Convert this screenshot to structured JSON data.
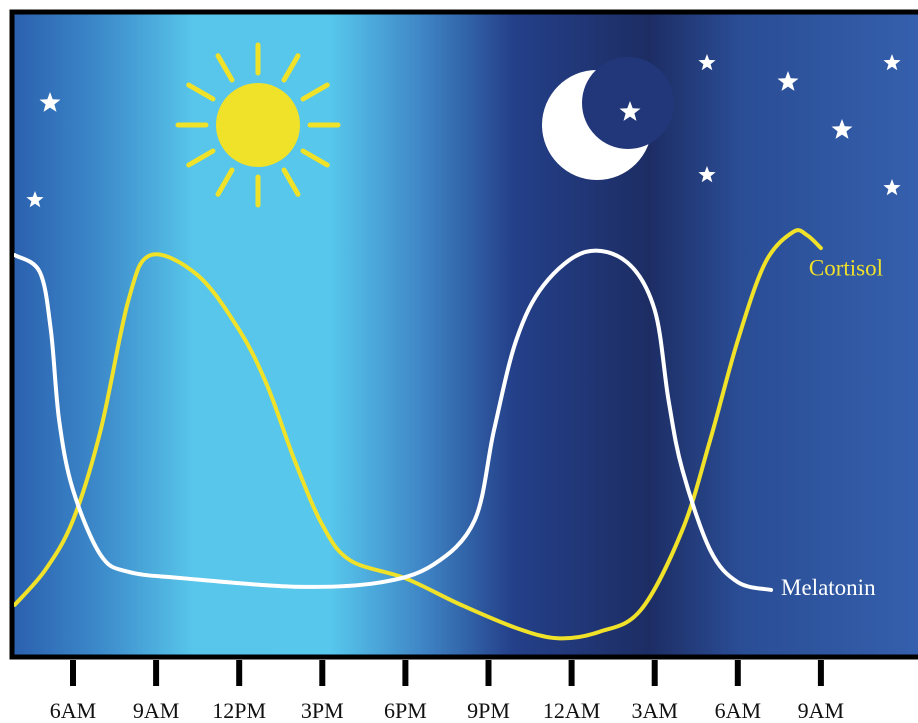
{
  "chart_data": {
    "type": "line",
    "xlim": [
      -2.2,
      30.5
    ],
    "ylim": [
      0,
      100
    ],
    "xticks": [
      {
        "value": 0,
        "label": "6AM"
      },
      {
        "value": 3,
        "label": "9AM"
      },
      {
        "value": 6,
        "label": "12PM"
      },
      {
        "value": 9,
        "label": "3PM"
      },
      {
        "value": 12,
        "label": "6PM"
      },
      {
        "value": 15,
        "label": "9PM"
      },
      {
        "value": 18,
        "label": "12AM"
      },
      {
        "value": 21,
        "label": "3AM"
      },
      {
        "value": 24,
        "label": "6AM"
      },
      {
        "value": 27,
        "label": "9AM"
      }
    ],
    "series": [
      {
        "name": "Cortisol",
        "color": "#f0e129",
        "x": [
          -2.1,
          -1,
          0,
          1,
          2,
          2.8,
          4.5,
          6,
          7,
          8,
          9,
          10,
          12,
          14,
          16,
          17.5,
          19,
          20.5,
          22,
          23,
          24,
          25,
          26,
          26.5,
          27
        ],
        "values": [
          8.1,
          13.5,
          21.2,
          35.2,
          55.3,
          62.3,
          59.2,
          50.7,
          42.2,
          30.5,
          20.5,
          15,
          12.2,
          8.1,
          4.5,
          2.9,
          3.9,
          7.3,
          19.7,
          33.6,
          49.1,
          61.2,
          65.9,
          65.4,
          63.4
        ]
      },
      {
        "name": "Melatonin",
        "color": "#ffffff",
        "x": [
          -2.1,
          -1.2,
          -0.8,
          -0.5,
          0,
          1,
          2,
          4,
          8,
          11,
          13,
          14.5,
          15.2,
          16,
          17,
          18.5,
          20,
          21,
          21.5,
          22,
          23,
          24,
          25.2
        ],
        "values": [
          62.3,
          59.7,
          50.7,
          36.7,
          25.9,
          15.8,
          13.2,
          12.2,
          10.9,
          11.5,
          14.3,
          21.2,
          35.2,
          49.1,
          57.7,
          62.8,
          61.2,
          53.8,
          39.8,
          29,
          16.6,
          11.6,
          10.4
        ]
      }
    ]
  }
}
